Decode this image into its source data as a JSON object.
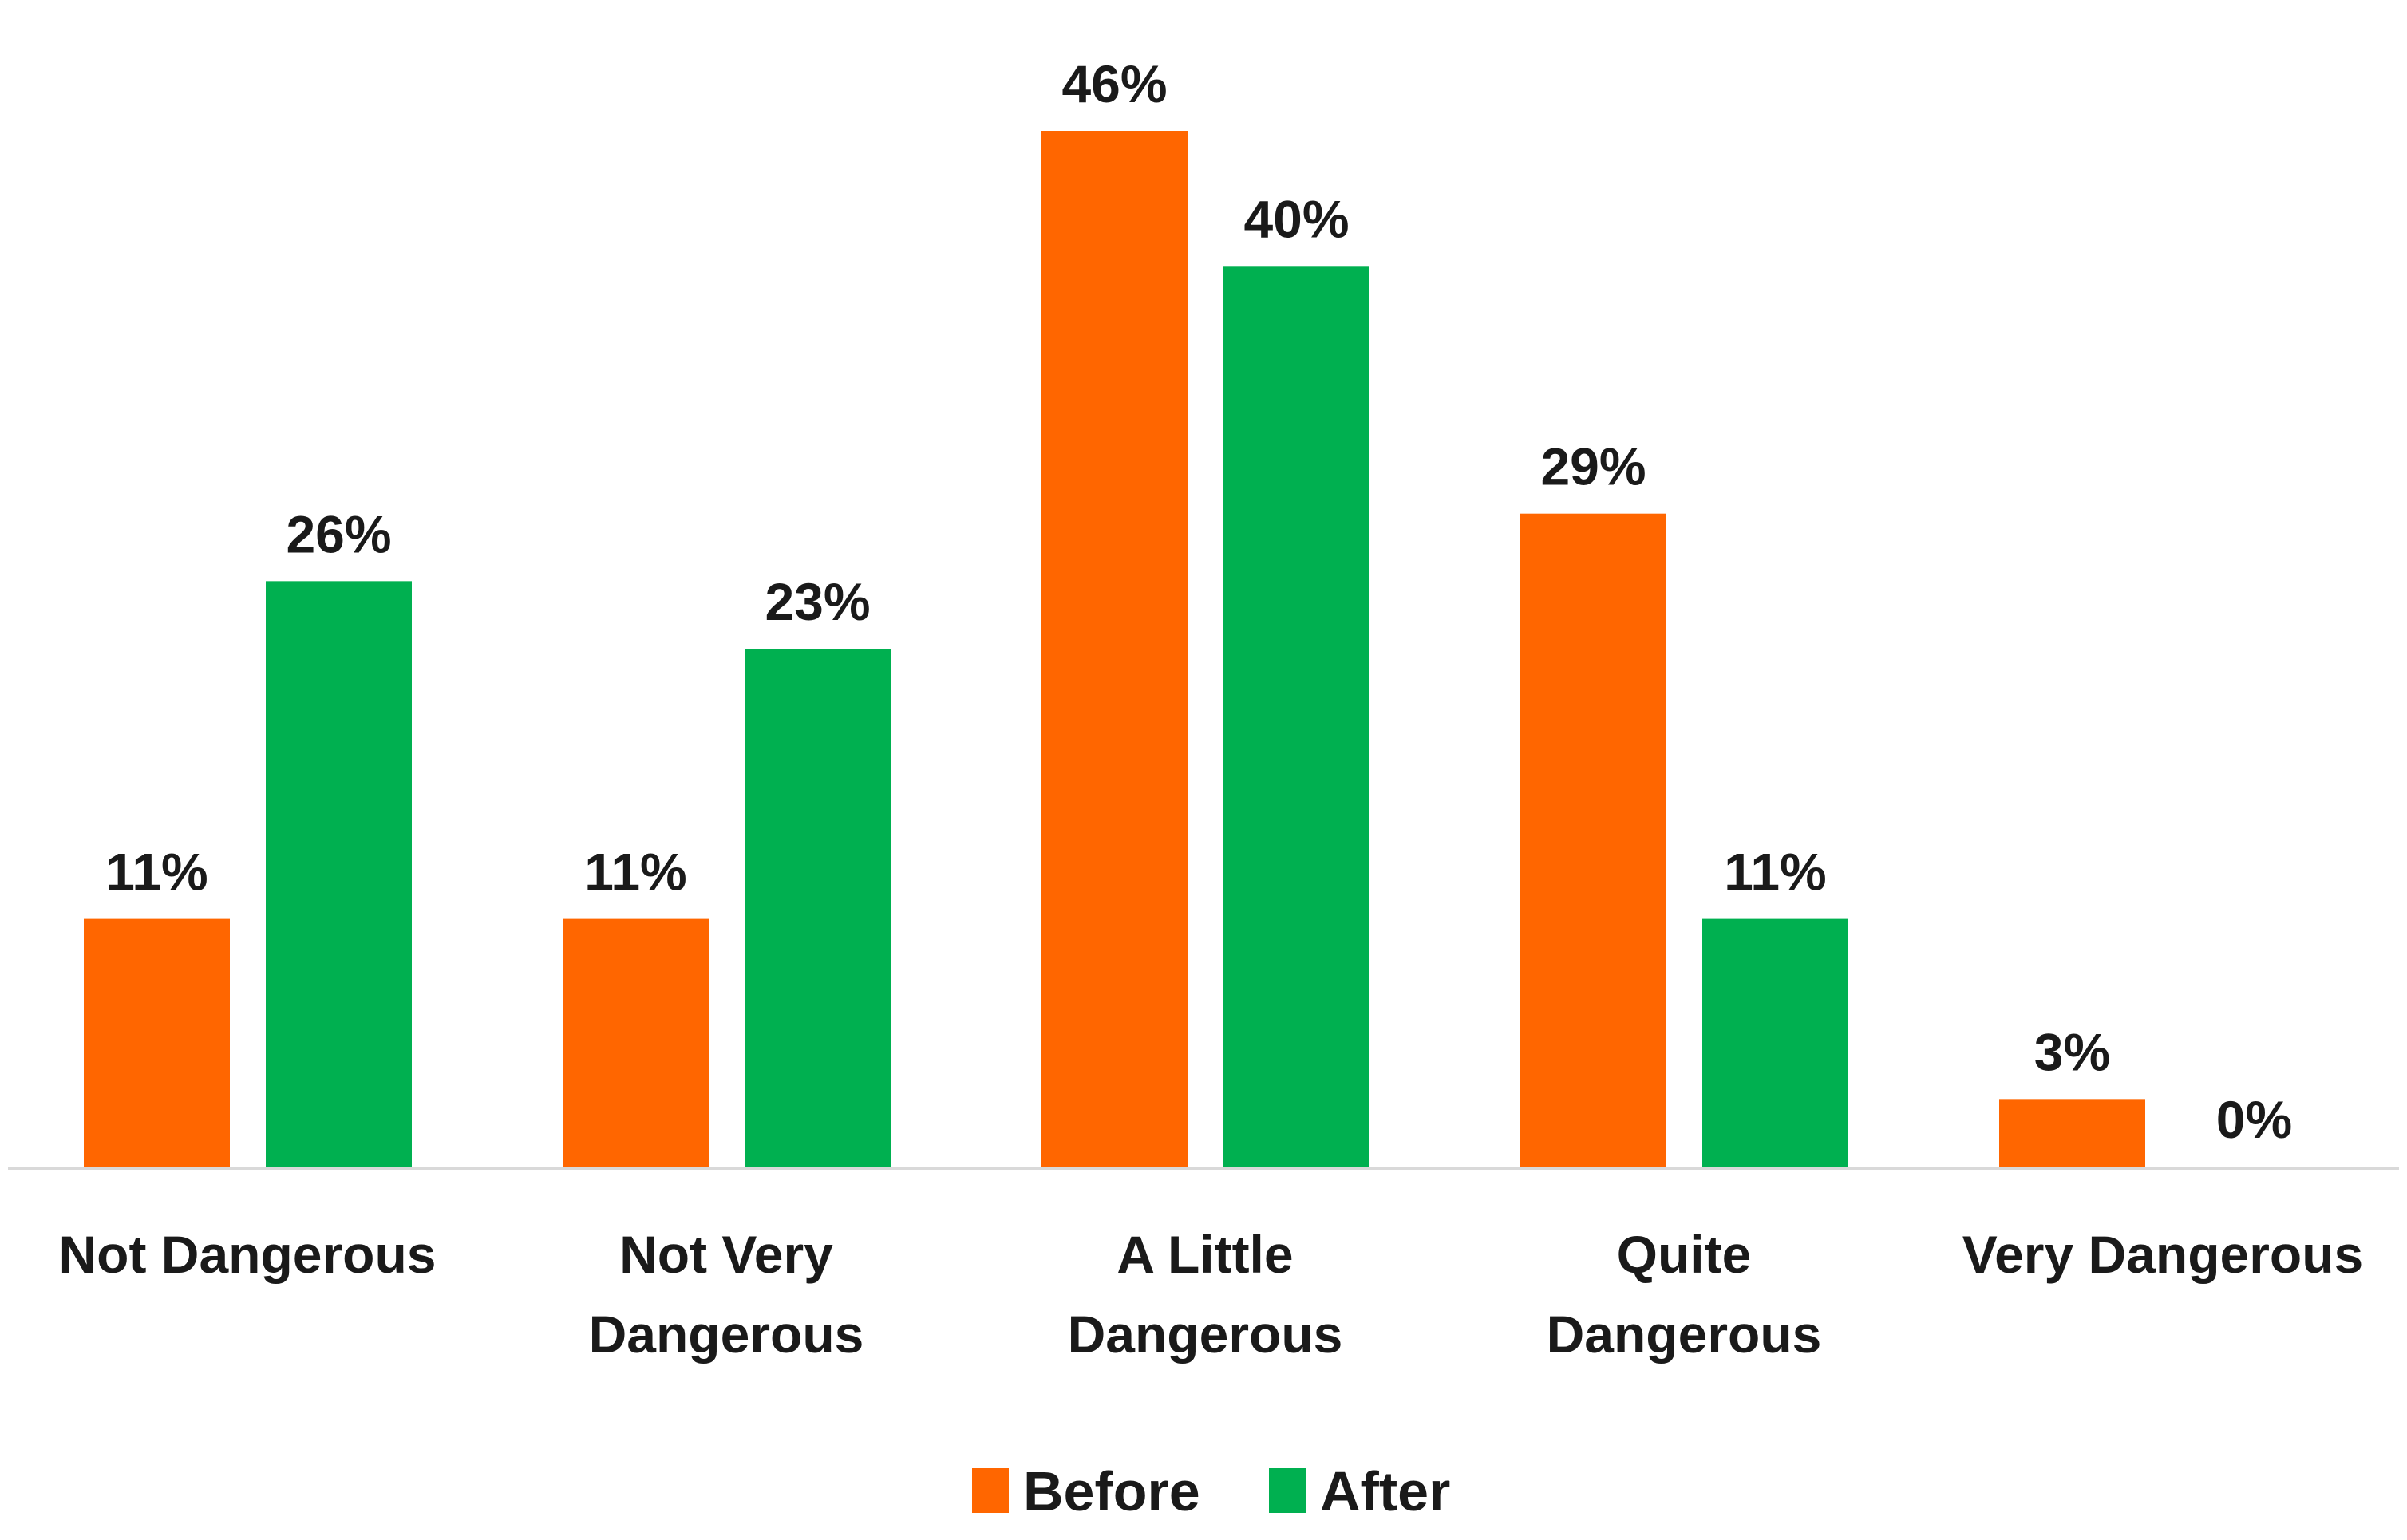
{
  "chart_data": {
    "type": "bar",
    "categories": [
      [
        "Not Dangerous"
      ],
      [
        "Not Very",
        "Dangerous"
      ],
      [
        "A Little",
        "Dangerous"
      ],
      [
        "Quite",
        "Dangerous"
      ],
      [
        "Very Dangerous"
      ]
    ],
    "series": [
      {
        "name": "Before",
        "color": "#FF6600",
        "values": [
          11,
          11,
          46,
          29,
          3
        ],
        "labels": [
          "11%",
          "11%",
          "46%",
          "29%",
          "3%"
        ]
      },
      {
        "name": "After",
        "color": "#00B050",
        "values": [
          26,
          23,
          40,
          11,
          0
        ],
        "labels": [
          "26%",
          "23%",
          "40%",
          "11%",
          "0%"
        ]
      }
    ],
    "value_unit": "%",
    "ylim": [
      0,
      46
    ],
    "grid": false,
    "legend_position": "bottom-center",
    "axis_color": "#d9d9d9"
  }
}
